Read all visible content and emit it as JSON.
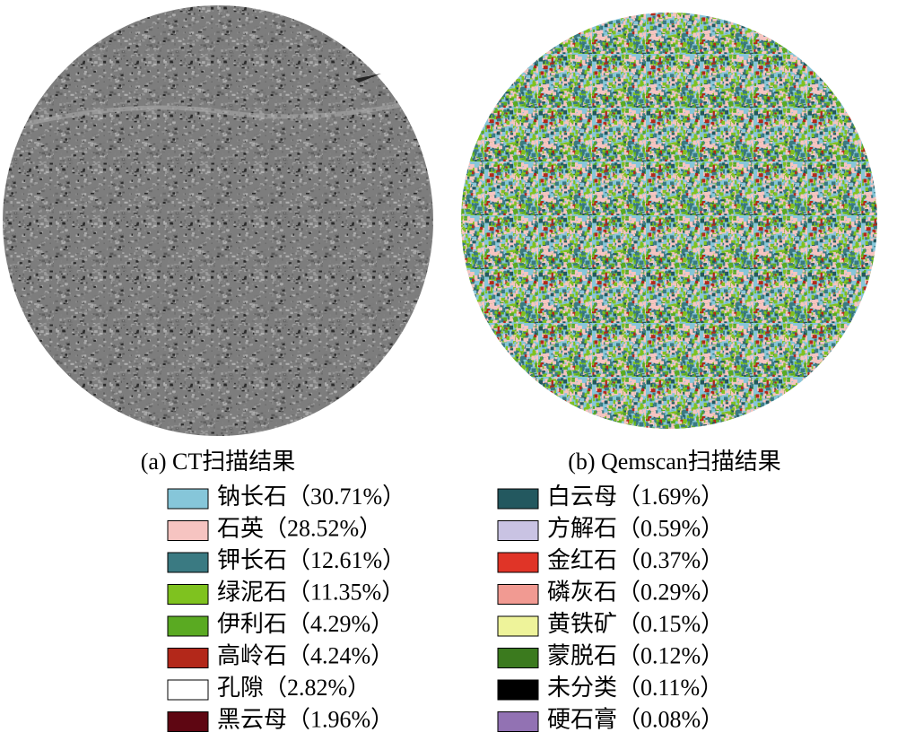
{
  "figure": {
    "panels": [
      {
        "caption": "(a) CT扫描结果"
      },
      {
        "caption": "(b) Qemscan扫描结果"
      }
    ],
    "legend": [
      {
        "label": "钠长石（30.71%）",
        "color": "#86c6d9"
      },
      {
        "label": "石英（28.52%）",
        "color": "#f6c4c1"
      },
      {
        "label": "钾长石（12.61%）",
        "color": "#3a7a82"
      },
      {
        "label": "绿泥石（11.35%）",
        "color": "#7fc21f"
      },
      {
        "label": "伊利石（4.29%）",
        "color": "#5aaa22"
      },
      {
        "label": "高岭石（4.24%）",
        "color": "#b3281a"
      },
      {
        "label": "孔隙（2.82%）",
        "color": "#ffffff"
      },
      {
        "label": "黑云母（1.96%）",
        "color": "#5e0612"
      },
      {
        "label": "白云母（1.69%）",
        "color": "#23585f"
      },
      {
        "label": "方解石（0.59%）",
        "color": "#c9c3e3"
      },
      {
        "label": "金红石（0.37%）",
        "color": "#e03427"
      },
      {
        "label": "磷灰石（0.29%）",
        "color": "#f19a92"
      },
      {
        "label": "黄铁矿（0.15%）",
        "color": "#eef39a"
      },
      {
        "label": "蒙脱石（0.12%）",
        "color": "#3b7a1e"
      },
      {
        "label": "未分类（0.11%）",
        "color": "#000000"
      },
      {
        "label": "硬石膏（0.08%）",
        "color": "#9272b3"
      }
    ]
  }
}
